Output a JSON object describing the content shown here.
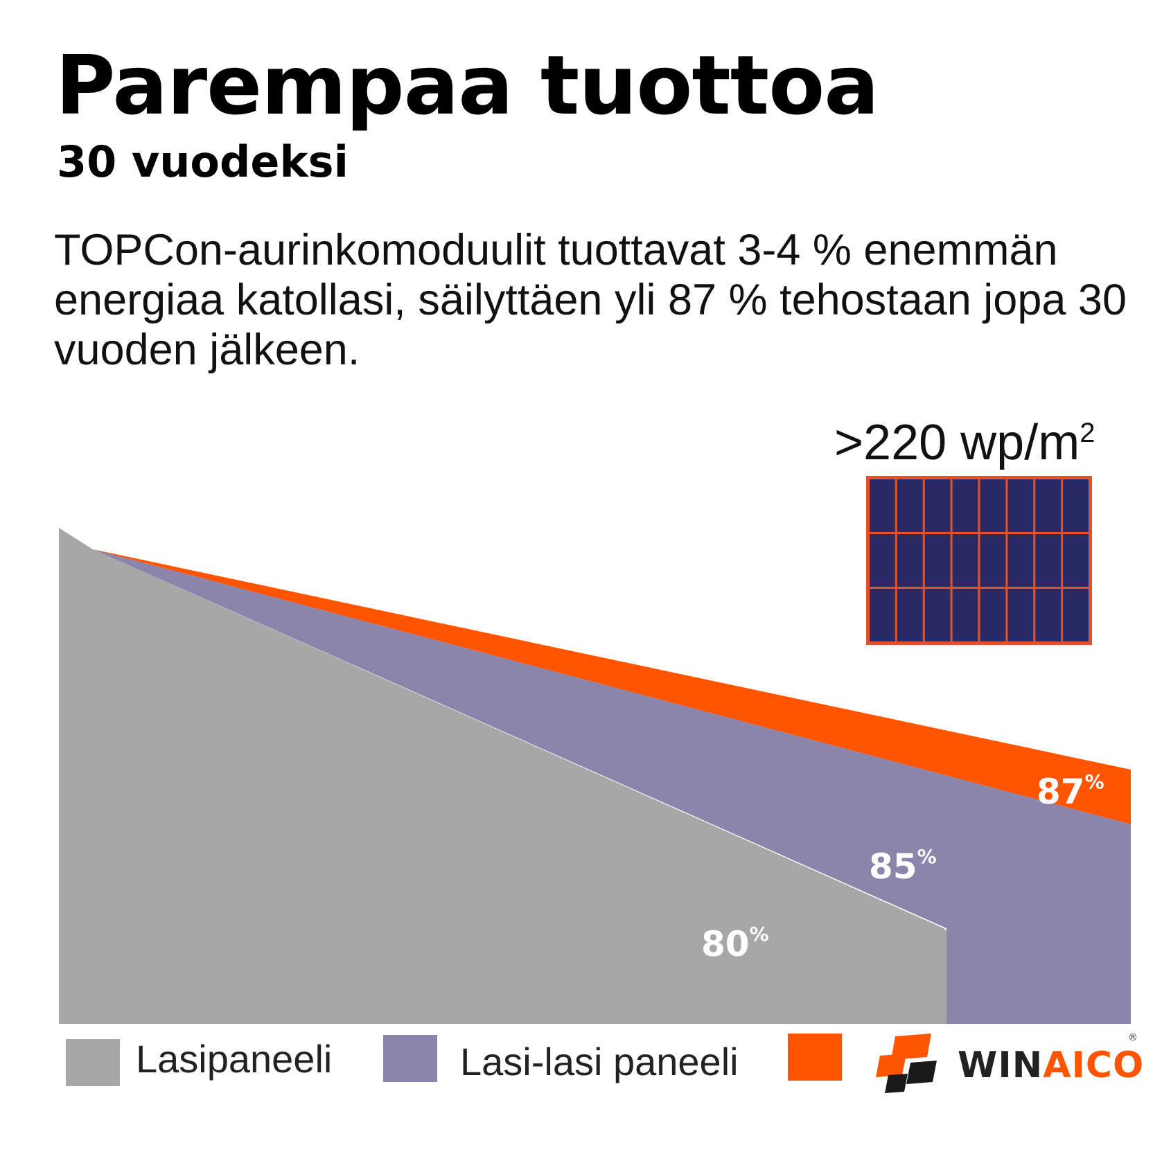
{
  "title": "Parempaa tuottoa",
  "subtitle": "30 vuodeksi",
  "description": "TOPCon-aurinkomoduulit tuottavat 3-4 % enemmän energiaa katollasi, säilyttäen yli 87 % tehostaan jopa 30 vuoden jälkeen.",
  "density_label": ">220 wp/m",
  "density_sup": "2",
  "colors": {
    "gray": "#a7a7a7",
    "purple": "#8b85ac",
    "orange": "#ff5500",
    "panel_cell": "#2a2a66",
    "panel_frame": "#e0522a"
  },
  "chart_data": {
    "type": "area",
    "series": [
      {
        "name": "Lasipaneeli",
        "end_label": "80",
        "end_value": 80,
        "color": "#a7a7a7"
      },
      {
        "name": "Lasi-lasi paneeli",
        "end_label": "85",
        "end_value": 85,
        "color": "#8b85ac"
      },
      {
        "name": "",
        "end_label": "87",
        "end_value": 87,
        "color": "#ff5500"
      }
    ],
    "label_suffix": "%"
  },
  "legend": [
    {
      "label": "Lasipaneeli",
      "color": "#a7a7a7"
    },
    {
      "label": "Lasi-lasi paneeli",
      "color": "#8b85ac"
    },
    {
      "label": "",
      "color": "#ff5500"
    }
  ],
  "logo": {
    "text_a": "WIN",
    "text_b": "AICO",
    "reg": "®",
    "icon": "winaico-logo-icon"
  }
}
